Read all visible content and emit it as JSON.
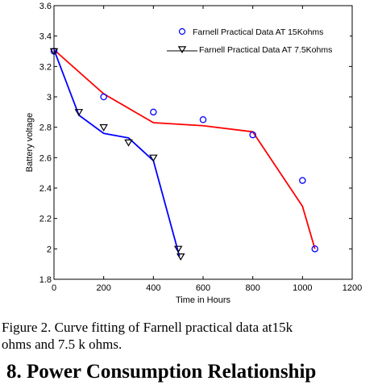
{
  "chart_data": {
    "type": "scatter",
    "xlabel": "Time in Hours",
    "ylabel": "Battery voltage",
    "xlim": [
      0,
      1200
    ],
    "ylim": [
      1.8,
      3.6
    ],
    "xticks": [
      "0",
      "200",
      "400",
      "600",
      "800",
      "1000",
      "1200"
    ],
    "yticks": [
      "1.8",
      "2",
      "2.2",
      "2.4",
      "2.6",
      "2.8",
      "3",
      "3.2",
      "3.4",
      "3.6"
    ],
    "grid": false,
    "legend_position": "top-right",
    "series": [
      {
        "name": "Farnell Practical Data AT 15Kohms",
        "marker": "circle",
        "color": "#0000ff",
        "points": [
          [
            0,
            3.3
          ],
          [
            200,
            3.0
          ],
          [
            400,
            2.9
          ],
          [
            600,
            2.85
          ],
          [
            800,
            2.75
          ],
          [
            1000,
            2.45
          ],
          [
            1050,
            2.0
          ]
        ]
      },
      {
        "name": "Farnell Practical Data AT 7.5Kohms",
        "marker": "triangle-down",
        "color": "#000000",
        "points": [
          [
            0,
            3.3
          ],
          [
            100,
            2.9
          ],
          [
            200,
            2.8
          ],
          [
            300,
            2.7
          ],
          [
            400,
            2.6
          ],
          [
            500,
            2.0
          ],
          [
            510,
            1.95
          ]
        ]
      }
    ],
    "fit_curves": [
      {
        "color": "#ff0000",
        "points": [
          [
            0,
            3.31
          ],
          [
            200,
            3.02
          ],
          [
            400,
            2.83
          ],
          [
            600,
            2.81
          ],
          [
            800,
            2.77
          ],
          [
            1000,
            2.28
          ],
          [
            1050,
            2.0
          ]
        ]
      },
      {
        "color": "#0000ff",
        "points": [
          [
            0,
            3.31
          ],
          [
            100,
            2.88
          ],
          [
            200,
            2.76
          ],
          [
            300,
            2.73
          ],
          [
            400,
            2.58
          ],
          [
            505,
            1.95
          ]
        ]
      }
    ]
  },
  "caption": {
    "line1": "Figure 2. Curve fitting of Farnell practical data at15k",
    "line2": "ohms and 7.5 k ohms."
  },
  "section_heading": "8. Power Consumption Relationship"
}
